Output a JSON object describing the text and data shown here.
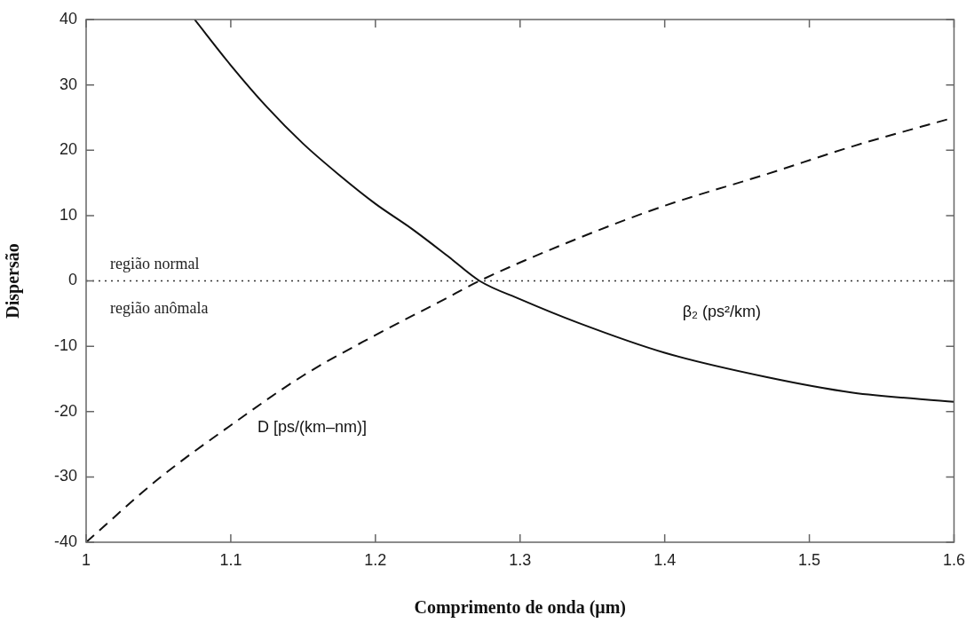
{
  "chart_data": {
    "type": "line",
    "xlabel": "Comprimento de onda (μm)",
    "ylabel": "Dispersão",
    "xlim": [
      1,
      1.6
    ],
    "xticks": [
      1,
      1.1,
      1.2,
      1.3,
      1.4,
      1.5,
      1.6
    ],
    "ylim": [
      -40,
      40
    ],
    "yticks": [
      -40,
      -30,
      -20,
      -10,
      0,
      10,
      20,
      30,
      40
    ],
    "grid": false,
    "legend": false,
    "marker": "none",
    "ref_lines": [
      {
        "axis": "y",
        "value": 0,
        "line_style": "dotted",
        "color": "#333333"
      }
    ],
    "annotations": [
      "região normal",
      "região anômala"
    ],
    "series": [
      {
        "name": "β₂ (ps²/km)",
        "color": "#111111",
        "line_style": "solid",
        "x": [
          1.075,
          1.1,
          1.125,
          1.15,
          1.175,
          1.2,
          1.225,
          1.25,
          1.272,
          1.3,
          1.34,
          1.4,
          1.47,
          1.53,
          1.6
        ],
        "values": [
          40,
          33,
          26.6,
          21,
          16.2,
          11.8,
          8,
          3.8,
          0,
          -2.8,
          -6.4,
          -11,
          -14.7,
          -17.1,
          -18.5
        ]
      },
      {
        "name": "D [ps/(km–nm)]",
        "color": "#111111",
        "line_style": "dashed",
        "x": [
          1.0,
          1.05,
          1.1,
          1.15,
          1.2,
          1.247,
          1.272,
          1.34,
          1.4,
          1.47,
          1.53,
          1.6
        ],
        "values": [
          -40,
          -30.3,
          -22.1,
          -14.5,
          -8.3,
          -2.9,
          0,
          6.5,
          11.5,
          16.3,
          20.6,
          25
        ]
      }
    ]
  }
}
